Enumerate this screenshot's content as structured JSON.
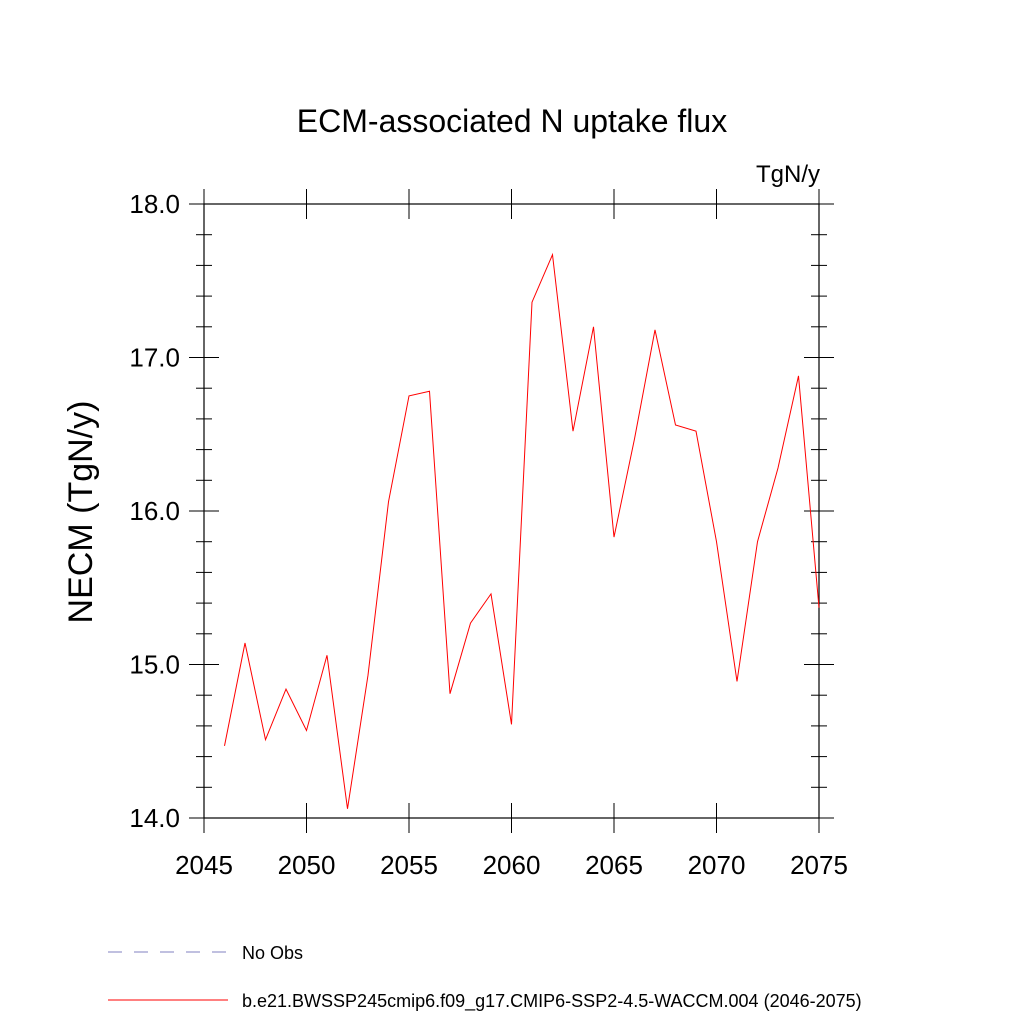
{
  "chart_data": {
    "type": "line",
    "title": "ECM-associated N uptake flux",
    "units": "TgN/y",
    "ylabel": "NECM  (TgN/y)",
    "xlabel": "",
    "xlim": [
      2045,
      2075
    ],
    "ylim": [
      14.0,
      18.0
    ],
    "xticks": [
      2045,
      2050,
      2055,
      2060,
      2065,
      2070,
      2075
    ],
    "xtick_labels": [
      "2045",
      "2050",
      "2055",
      "2060",
      "2065",
      "2070",
      "2075"
    ],
    "yticks": [
      14.0,
      15.0,
      16.0,
      17.0,
      18.0
    ],
    "ytick_labels": [
      "14.0",
      "15.0",
      "16.0",
      "17.0",
      "18.0"
    ],
    "series": [
      {
        "name": "b.e21.BWSSP245cmip6.f09_g17.CMIP6-SSP2-4.5-WACCM.004 (2046-2075)",
        "color": "#ff0000",
        "x": [
          2046,
          2047,
          2048,
          2049,
          2050,
          2051,
          2052,
          2053,
          2054,
          2055,
          2056,
          2057,
          2058,
          2059,
          2060,
          2061,
          2062,
          2063,
          2064,
          2065,
          2066,
          2067,
          2068,
          2069,
          2070,
          2071,
          2072,
          2073,
          2074,
          2075
        ],
        "values": [
          14.47,
          15.14,
          14.51,
          14.84,
          14.57,
          15.06,
          14.06,
          14.93,
          16.06,
          16.75,
          16.78,
          14.81,
          15.27,
          15.46,
          14.61,
          17.36,
          17.67,
          16.52,
          17.2,
          15.83,
          16.47,
          17.18,
          16.56,
          16.52,
          15.8,
          14.89,
          15.8,
          16.28,
          16.88,
          15.37
        ]
      }
    ],
    "legend": [
      {
        "label": "No Obs",
        "style": "dashed",
        "color": "#8080c0"
      },
      {
        "label": "b.e21.BWSSP245cmip6.f09_g17.CMIP6-SSP2-4.5-WACCM.004 (2046-2075)",
        "style": "solid",
        "color": "#ff0000"
      }
    ],
    "legend_position": "bottom"
  }
}
